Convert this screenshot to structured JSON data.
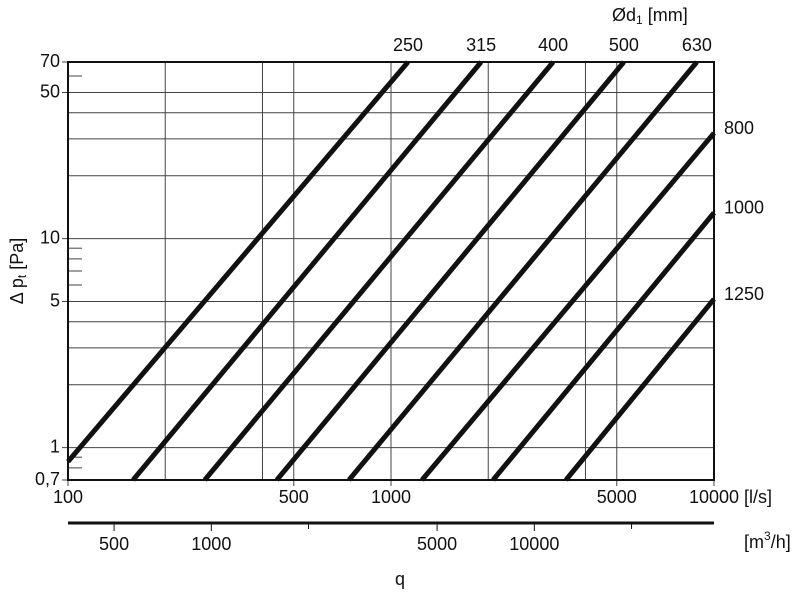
{
  "chart_data": {
    "type": "line",
    "log_x": true,
    "log_y": true,
    "color": "#111111",
    "y_label": {
      "text": "Δ p",
      "sub": "t",
      "suffix": " [Pa]"
    },
    "series_title": {
      "text": "Ød",
      "sub": "1",
      "suffix": " [mm]"
    },
    "x_unit": "[l/s]",
    "x2_unit": {
      "text": "[m",
      "sup": "3",
      "suffix": "/h]"
    },
    "x_label": "q",
    "xlim": [
      100,
      10000
    ],
    "xticks": [
      100,
      500,
      1000,
      5000,
      10000
    ],
    "xgrid": [
      200,
      400,
      2000,
      4000
    ],
    "ylim": [
      0.7,
      70
    ],
    "yticks": [
      {
        "value": 0.7,
        "label": "0,7"
      },
      1,
      5,
      10,
      50,
      70
    ],
    "ygrid": [
      2,
      3,
      4,
      20,
      30,
      40
    ],
    "yminor": [
      0.8,
      0.9,
      6,
      7,
      8,
      9,
      60
    ],
    "x2lim": [
      360,
      36000
    ],
    "x2ticks": [
      500,
      1000,
      5000,
      10000
    ],
    "x2minor": [
      2000,
      20000
    ],
    "series": [
      {
        "name": "250",
        "x": [
          100,
          1129
        ],
        "values": [
          0.857,
          70
        ]
      },
      {
        "name": "315",
        "x": [
          159,
          1901
        ],
        "values": [
          0.7,
          70
        ]
      },
      {
        "name": "400",
        "x": [
          265,
          3177
        ],
        "values": [
          0.7,
          70
        ]
      },
      {
        "name": "500",
        "x": [
          443,
          5260
        ],
        "values": [
          0.7,
          70
        ]
      },
      {
        "name": "630",
        "x": [
          741,
          8850
        ],
        "values": [
          0.7,
          70
        ]
      },
      {
        "name": "800",
        "x": [
          1247,
          10000
        ],
        "values": [
          0.7,
          32.0
        ]
      },
      {
        "name": "1000",
        "x": [
          2070,
          10000
        ],
        "values": [
          0.7,
          13.3
        ]
      },
      {
        "name": "1250",
        "x": [
          3480,
          10000
        ],
        "values": [
          0.7,
          5.14
        ]
      }
    ]
  }
}
